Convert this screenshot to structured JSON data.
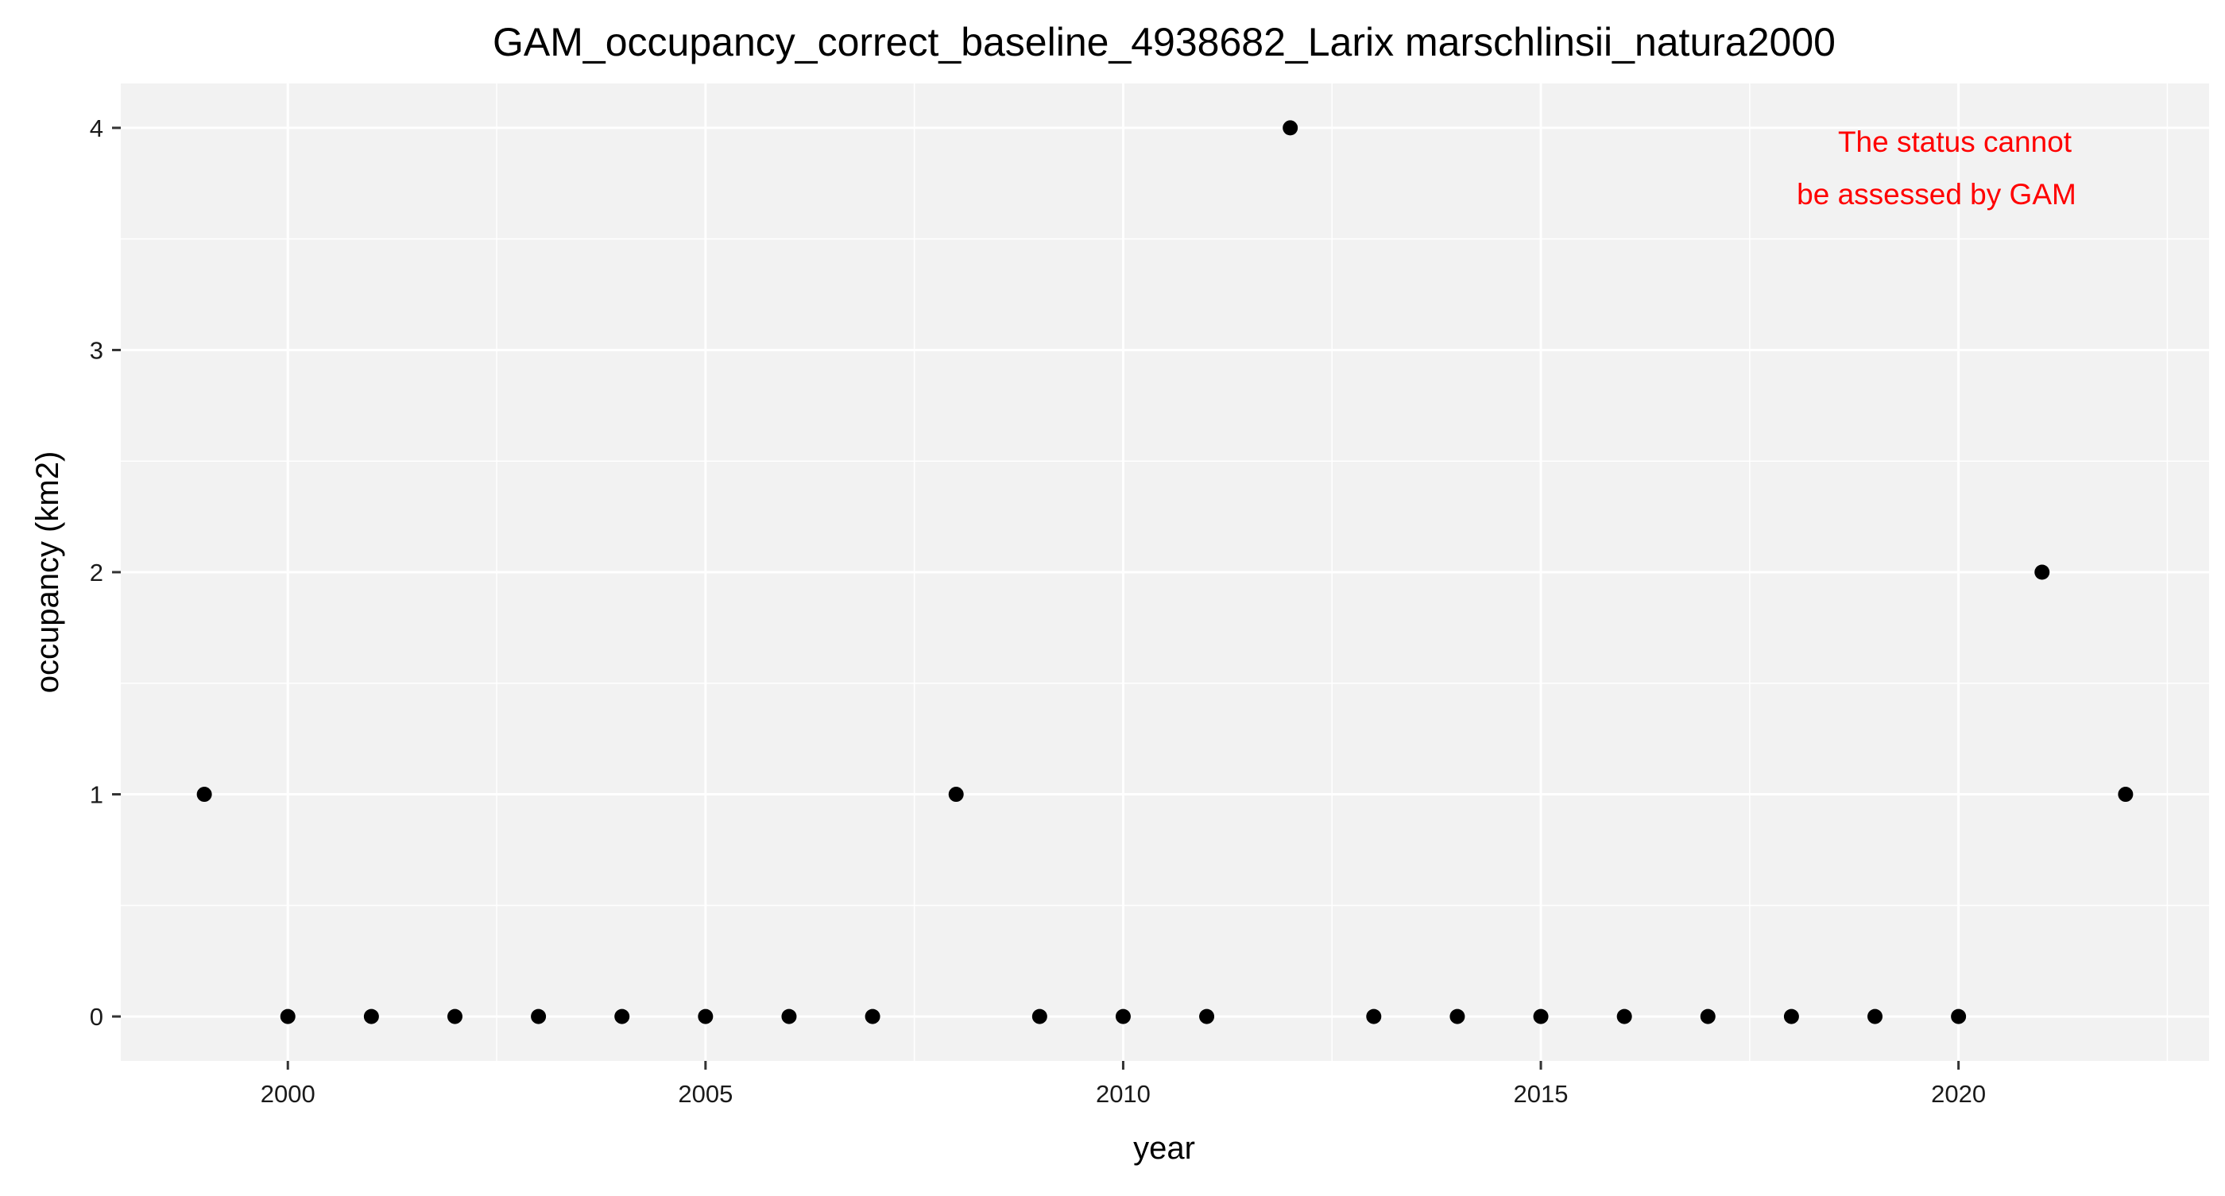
{
  "chart_data": {
    "type": "scatter",
    "title": "GAM_occupancy_correct_baseline_4938682_Larix marschlinsii_natura2000",
    "xlabel": "year",
    "ylabel": "occupancy (km2)",
    "xlim": [
      1998.0,
      2023.0
    ],
    "ylim": [
      -0.2,
      4.2
    ],
    "x_ticks": [
      2000,
      2005,
      2010,
      2015,
      2020
    ],
    "x_minor_ticks": [
      2002.5,
      2007.5,
      2012.5,
      2017.5,
      2022.5
    ],
    "y_ticks": [
      0,
      1,
      2,
      3,
      4
    ],
    "y_minor_ticks": [
      0.5,
      1.5,
      2.5,
      3.5
    ],
    "grid": true,
    "background_color": "#F2F2F2",
    "grid_color": "#FFFFFF",
    "point_color": "#000000",
    "series": [
      {
        "x": [
          1999,
          2000,
          2001,
          2002,
          2003,
          2004,
          2005,
          2006,
          2007,
          2008,
          2009,
          2010,
          2011,
          2012,
          2013,
          2014,
          2015,
          2016,
          2017,
          2018,
          2019,
          2020,
          2021,
          2022
        ],
        "y": [
          1,
          0,
          0,
          0,
          0,
          0,
          0,
          0,
          0,
          1,
          0,
          0,
          0,
          4,
          0,
          0,
          0,
          0,
          0,
          0,
          0,
          0,
          2,
          1
        ]
      }
    ],
    "annotation": {
      "lines": [
        "The status cannot",
        "be assessed by GAM"
      ],
      "color": "#FF0000",
      "placement": "top-right"
    }
  }
}
